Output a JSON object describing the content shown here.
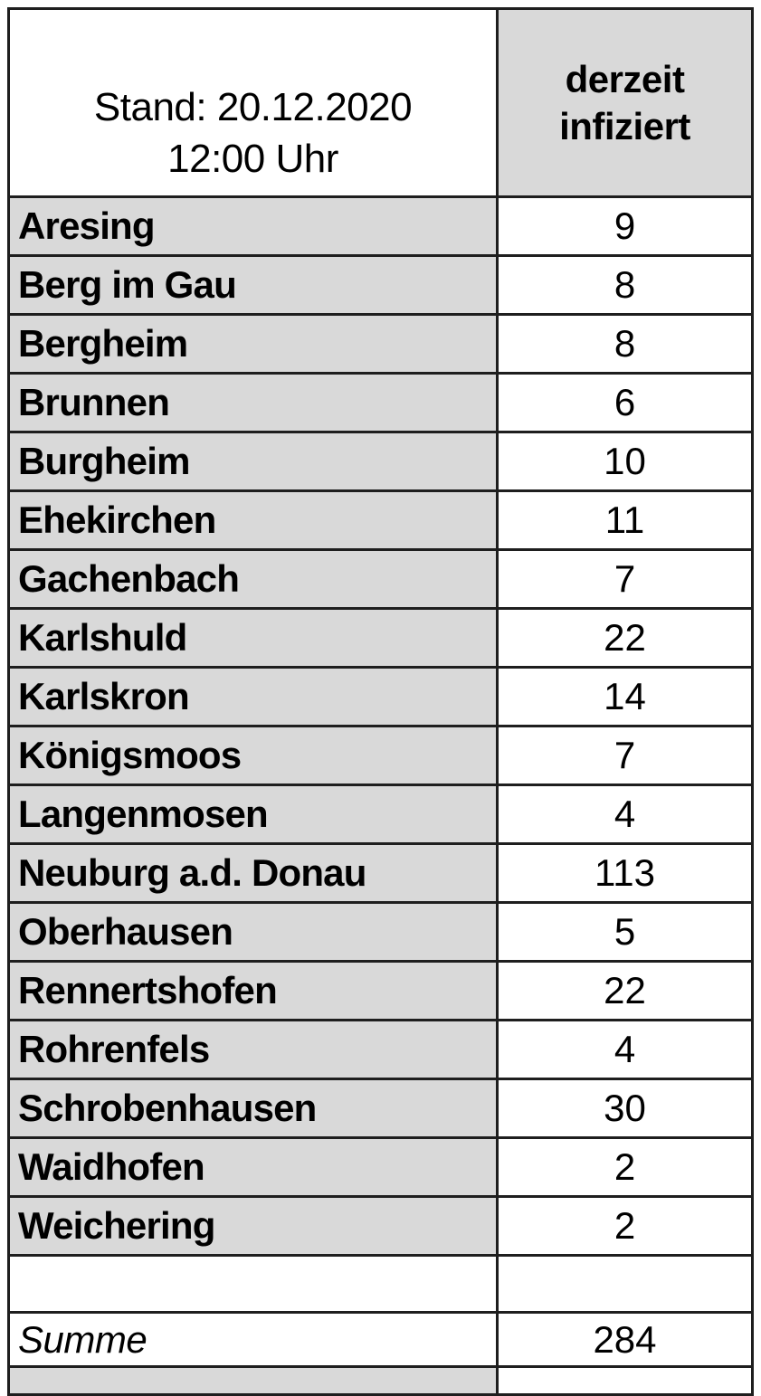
{
  "colors": {
    "cell_gray": "#d9d9d9",
    "cell_white": "#ffffff",
    "border": "#1e1e1e",
    "text": "#000000"
  },
  "chart_data": {
    "type": "table",
    "title": "Stand: 20.12.2020 12:00 Uhr",
    "title_lines": [
      "Stand: 20.12.2020",
      "12:00 Uhr"
    ],
    "value_column_header": "derzeit infiziert",
    "value_column_header_lines": [
      "derzeit",
      "infiziert"
    ],
    "categories": [
      "Aresing",
      "Berg im Gau",
      "Bergheim",
      "Brunnen",
      "Burgheim",
      "Ehekirchen",
      "Gachenbach",
      "Karlshuld",
      "Karlskron",
      "Königsmoos",
      "Langenmosen",
      "Neuburg a.d. Donau",
      "Oberhausen",
      "Rennertshofen",
      "Rohrenfels",
      "Schrobenhausen",
      "Waidhofen",
      "Weichering"
    ],
    "values": [
      9,
      8,
      8,
      6,
      10,
      11,
      7,
      22,
      14,
      7,
      4,
      113,
      5,
      22,
      4,
      30,
      2,
      2
    ],
    "rows": [
      {
        "name": "Aresing",
        "value": "9"
      },
      {
        "name": "Berg im Gau",
        "value": "8"
      },
      {
        "name": "Bergheim",
        "value": "8"
      },
      {
        "name": "Brunnen",
        "value": "6"
      },
      {
        "name": "Burgheim",
        "value": "10"
      },
      {
        "name": "Ehekirchen",
        "value": "11"
      },
      {
        "name": "Gachenbach",
        "value": "7"
      },
      {
        "name": "Karlshuld",
        "value": "22"
      },
      {
        "name": "Karlskron",
        "value": "14"
      },
      {
        "name": "Königsmoos",
        "value": "7"
      },
      {
        "name": "Langenmosen",
        "value": "4"
      },
      {
        "name": "Neuburg a.d. Donau",
        "value": "113"
      },
      {
        "name": "Oberhausen",
        "value": "5"
      },
      {
        "name": "Rennertshofen",
        "value": "22"
      },
      {
        "name": "Rohrenfels",
        "value": "4"
      },
      {
        "name": "Schrobenhausen",
        "value": "30"
      },
      {
        "name": "Waidhofen",
        "value": "2"
      },
      {
        "name": "Weichering",
        "value": "2"
      }
    ],
    "summary": {
      "label": "Summe",
      "value": "284"
    }
  }
}
